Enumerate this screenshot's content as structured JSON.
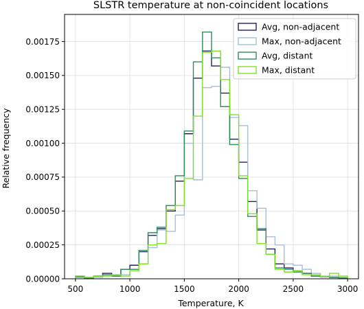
{
  "chart_data": {
    "type": "step-histogram",
    "title": "SLSTR temperature at non-coincident locations",
    "xlabel": "Temperature, K",
    "ylabel": "Relative frequency",
    "xlim": [
      400,
      3100
    ],
    "ylim": [
      0,
      0.00195
    ],
    "xticks": [
      500,
      1000,
      1500,
      2000,
      2500,
      3000
    ],
    "yticks": [
      0,
      0.00025,
      0.0005,
      0.00075,
      0.001,
      0.00125,
      0.0015,
      0.00175
    ],
    "ytick_labels": [
      "0.00000",
      "0.00025",
      "0.00050",
      "0.00075",
      "0.00100",
      "0.00125",
      "0.00150",
      "0.00175"
    ],
    "grid": true,
    "legend_position": "top-right",
    "bin_edges": [
      500,
      583,
      667,
      750,
      833,
      917,
      1000,
      1083,
      1167,
      1250,
      1333,
      1417,
      1500,
      1583,
      1667,
      1750,
      1833,
      1917,
      2000,
      2083,
      2167,
      2250,
      2333,
      2417,
      2500,
      2583,
      2667,
      2750,
      2833,
      2917,
      3000
    ],
    "series": [
      {
        "name": "Avg, non-adjacent",
        "color": "#1f1f5c",
        "values": [
          1.5e-05,
          1e-05,
          2e-05,
          4e-05,
          2e-05,
          7e-05,
          0.0001,
          0.0002,
          0.00032,
          0.00037,
          0.0005,
          0.00072,
          0.00107,
          0.00148,
          0.00168,
          0.00157,
          0.00137,
          0.00103,
          0.00086,
          0.00057,
          0.00036,
          0.00022,
          0.00011,
          8e-05,
          6e-05,
          4e-05,
          2e-05,
          1.5e-05,
          1e-05,
          1e-05
        ]
      },
      {
        "name": "Max, non-adjacent",
        "color": "#a9bcd9",
        "values": [
          1e-05,
          1e-05,
          1e-05,
          2e-05,
          3e-05,
          3e-05,
          7e-05,
          0.00011,
          0.00023,
          0.00036,
          0.00035,
          0.00047,
          0.001,
          0.00073,
          0.00141,
          0.00142,
          0.00156,
          0.00119,
          0.00113,
          0.00065,
          0.00052,
          0.00031,
          0.00025,
          0.00011,
          0.0001,
          7e-05,
          4e-05,
          2e-05,
          2e-05,
          1e-05
        ]
      },
      {
        "name": "Avg, distant",
        "color": "#2e8b57",
        "values": [
          2e-05,
          5e-06,
          2e-05,
          3e-05,
          2e-05,
          7e-05,
          7e-05,
          0.00021,
          0.00034,
          0.00038,
          0.00054,
          0.00076,
          0.00109,
          0.0016,
          0.00182,
          0.00163,
          0.00127,
          0.00099,
          0.00074,
          0.00046,
          0.00037,
          0.00018,
          8e-05,
          7e-05,
          5e-05,
          4e-05,
          2e-05,
          1.5e-05,
          1e-05,
          5e-06
        ]
      },
      {
        "name": "Max, distant",
        "color": "#7ee026",
        "values": [
          2e-05,
          1e-05,
          2e-05,
          2e-05,
          3e-05,
          2e-05,
          6e-05,
          0.00011,
          0.00025,
          0.00026,
          0.00051,
          0.00054,
          0.00074,
          0.0012,
          0.00167,
          0.00168,
          0.00147,
          0.00121,
          0.00076,
          0.00048,
          0.00026,
          0.00018,
          7e-05,
          5e-05,
          6e-05,
          3e-05,
          3e-05,
          1.5e-05,
          4e-05,
          2e-05
        ]
      }
    ]
  }
}
